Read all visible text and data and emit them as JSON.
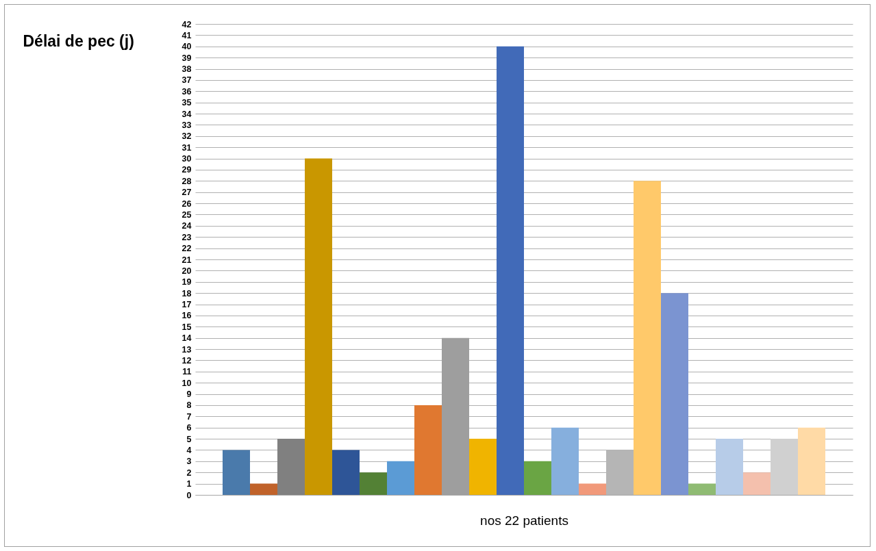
{
  "chart_data": {
    "type": "bar",
    "ylabel": "Délai de pec (j)",
    "xlabel": "nos 22 patients",
    "categories": [
      null,
      null,
      null,
      null,
      null,
      null,
      null,
      null,
      null,
      null,
      null,
      null,
      null,
      null,
      null,
      null,
      null,
      null,
      null,
      null,
      null,
      null
    ],
    "values": [
      4,
      1,
      5,
      30,
      4,
      2,
      3,
      8,
      14,
      5,
      40,
      3,
      6,
      1,
      4,
      28,
      18,
      1,
      5,
      2,
      5,
      6
    ],
    "colors": [
      "#4a7aab",
      "#c0622a",
      "#808080",
      "#c99700",
      "#2e5597",
      "#538135",
      "#5b9bd5",
      "#e07830",
      "#9e9e9e",
      "#f0b400",
      "#416ab8",
      "#6aa544",
      "#86afdd",
      "#f1997a",
      "#b5b5b5",
      "#ffc96a",
      "#7b94d1",
      "#8fbb73",
      "#b7cce8",
      "#f4c0ad",
      "#d0d0d0",
      "#ffdaa6"
    ],
    "ylim": [
      0,
      42
    ],
    "yticks": [
      0,
      1,
      2,
      3,
      4,
      5,
      6,
      7,
      8,
      9,
      10,
      11,
      12,
      13,
      14,
      15,
      16,
      17,
      18,
      19,
      20,
      21,
      22,
      23,
      24,
      25,
      26,
      27,
      28,
      29,
      30,
      31,
      32,
      33,
      34,
      35,
      36,
      37,
      38,
      39,
      40,
      41,
      42
    ],
    "grid": "y",
    "tick_labels": "y"
  }
}
